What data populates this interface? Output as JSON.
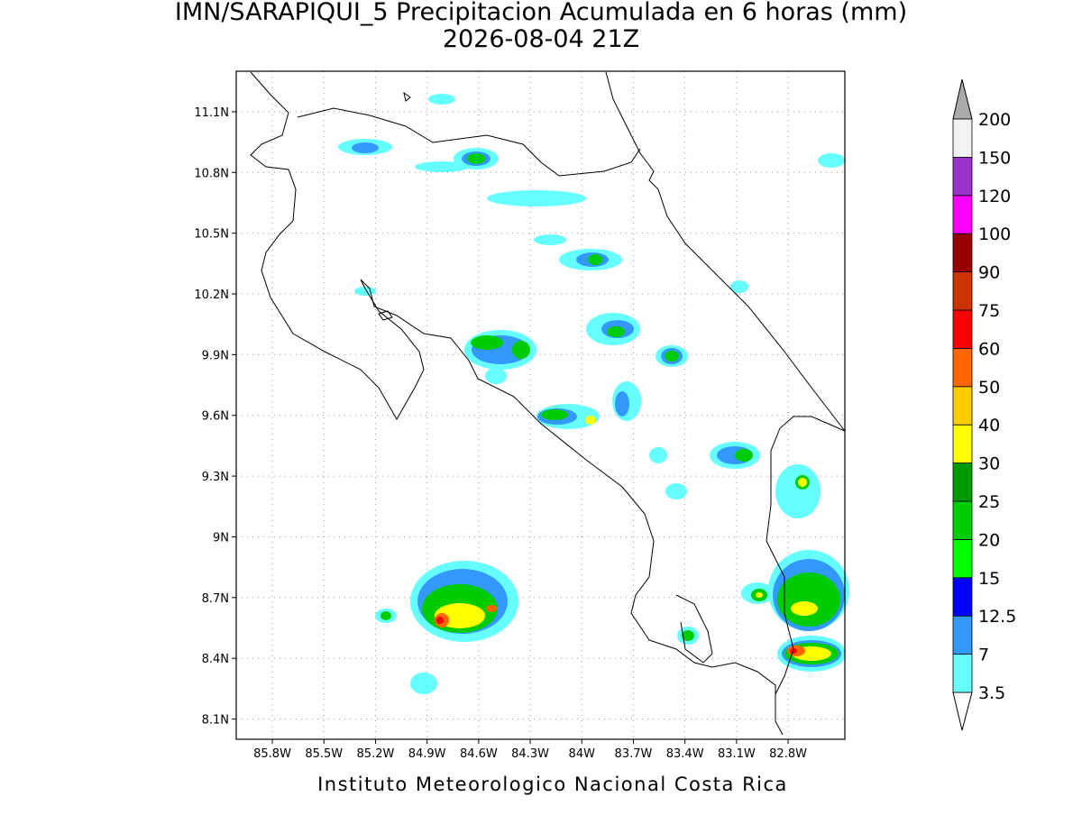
{
  "title": "IMN/SARAPIQUI_5 Precipitacion Acumulada en 6 horas (mm)",
  "subtitle": "2026-08-04 21Z",
  "footer": "Instituto Meteorologico Nacional Costa Rica",
  "map": {
    "xlim": [
      -86.01,
      -82.47
    ],
    "xticks": [
      {
        "value": -85.8,
        "label": "85.8W"
      },
      {
        "value": -85.5,
        "label": "85.5W"
      },
      {
        "value": -85.2,
        "label": "85.2W"
      },
      {
        "value": -84.9,
        "label": "84.9W"
      },
      {
        "value": -84.6,
        "label": "84.6W"
      },
      {
        "value": -84.3,
        "label": "84.3W"
      },
      {
        "value": -84.0,
        "label": "84W"
      },
      {
        "value": -83.7,
        "label": "83.7W"
      },
      {
        "value": -83.4,
        "label": "83.4W"
      },
      {
        "value": -83.1,
        "label": "83.1W"
      },
      {
        "value": -82.8,
        "label": "82.8W"
      }
    ],
    "ylim": [
      8.0,
      11.3
    ],
    "yticks": [
      {
        "value": 8.1,
        "label": "8.1N"
      },
      {
        "value": 8.4,
        "label": "8.4N"
      },
      {
        "value": 8.7,
        "label": "8.7N"
      },
      {
        "value": 9.0,
        "label": "9N"
      },
      {
        "value": 9.3,
        "label": "9.3N"
      },
      {
        "value": 9.6,
        "label": "9.6N"
      },
      {
        "value": 9.9,
        "label": "9.9N"
      },
      {
        "value": 10.2,
        "label": "10.2N"
      },
      {
        "value": 10.5,
        "label": "10.5N"
      },
      {
        "value": 10.8,
        "label": "10.8N"
      },
      {
        "value": 11.1,
        "label": "11.1N"
      }
    ],
    "grid": true
  },
  "colorbar": {
    "ticks": [
      3.5,
      7,
      12.5,
      15,
      20,
      25,
      30,
      40,
      50,
      60,
      75,
      90,
      100,
      120,
      150,
      200
    ],
    "colors": [
      "#66ffff",
      "#3399ff",
      "#0000ff",
      "#00ff00",
      "#00cc00",
      "#009900",
      "#ffff00",
      "#ffcc00",
      "#ff6600",
      "#ff0000",
      "#cc3300",
      "#990000",
      "#ff00ff",
      "#9933cc",
      "#f2f2f2"
    ]
  }
}
